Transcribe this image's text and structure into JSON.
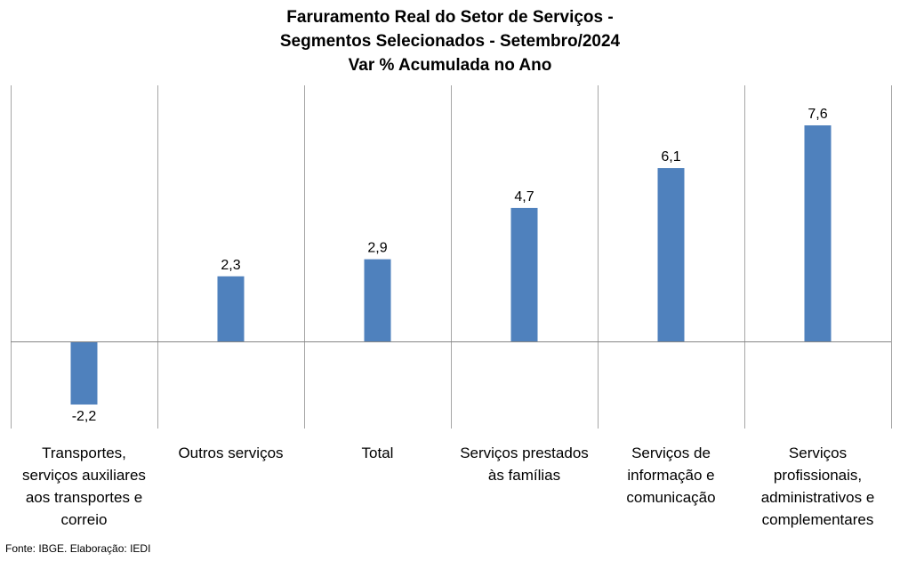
{
  "title_lines": [
    "Faruramento Real do Setor de Serviços -",
    "Segmentos Selecionados - Setembro/2024",
    "Var % Acumulada no Ano"
  ],
  "source_note": "Fonte: IBGE. Elaboração: IEDI",
  "colors": {
    "bar": "#4f81bd",
    "grid": "#a6a6a6",
    "axis": "#868686"
  },
  "chart_data": {
    "type": "bar",
    "title": "Faruramento Real do Setor de Serviços - Segmentos Selecionados - Setembro/2024 Var % Acumulada no Ano",
    "categories": [
      [
        "Transportes,",
        "serviços auxiliares",
        "aos transportes e",
        "correio"
      ],
      [
        "Outros serviços"
      ],
      [
        "Total"
      ],
      [
        "Serviços prestados",
        "às famílias"
      ],
      [
        "Serviços de",
        "informação e",
        "comunicação"
      ],
      [
        "Serviços",
        "profissionais,",
        "administrativos e",
        "complementares"
      ]
    ],
    "values": [
      -2.2,
      2.3,
      2.9,
      4.7,
      6.1,
      7.6
    ],
    "data_labels": [
      "-2,2",
      "2,3",
      "2,9",
      "4,7",
      "6,1",
      "7,6"
    ],
    "xlabel": "",
    "ylabel": "",
    "ylim": [
      -3,
      9
    ],
    "grid": "vertical category separators",
    "legend": "none"
  }
}
